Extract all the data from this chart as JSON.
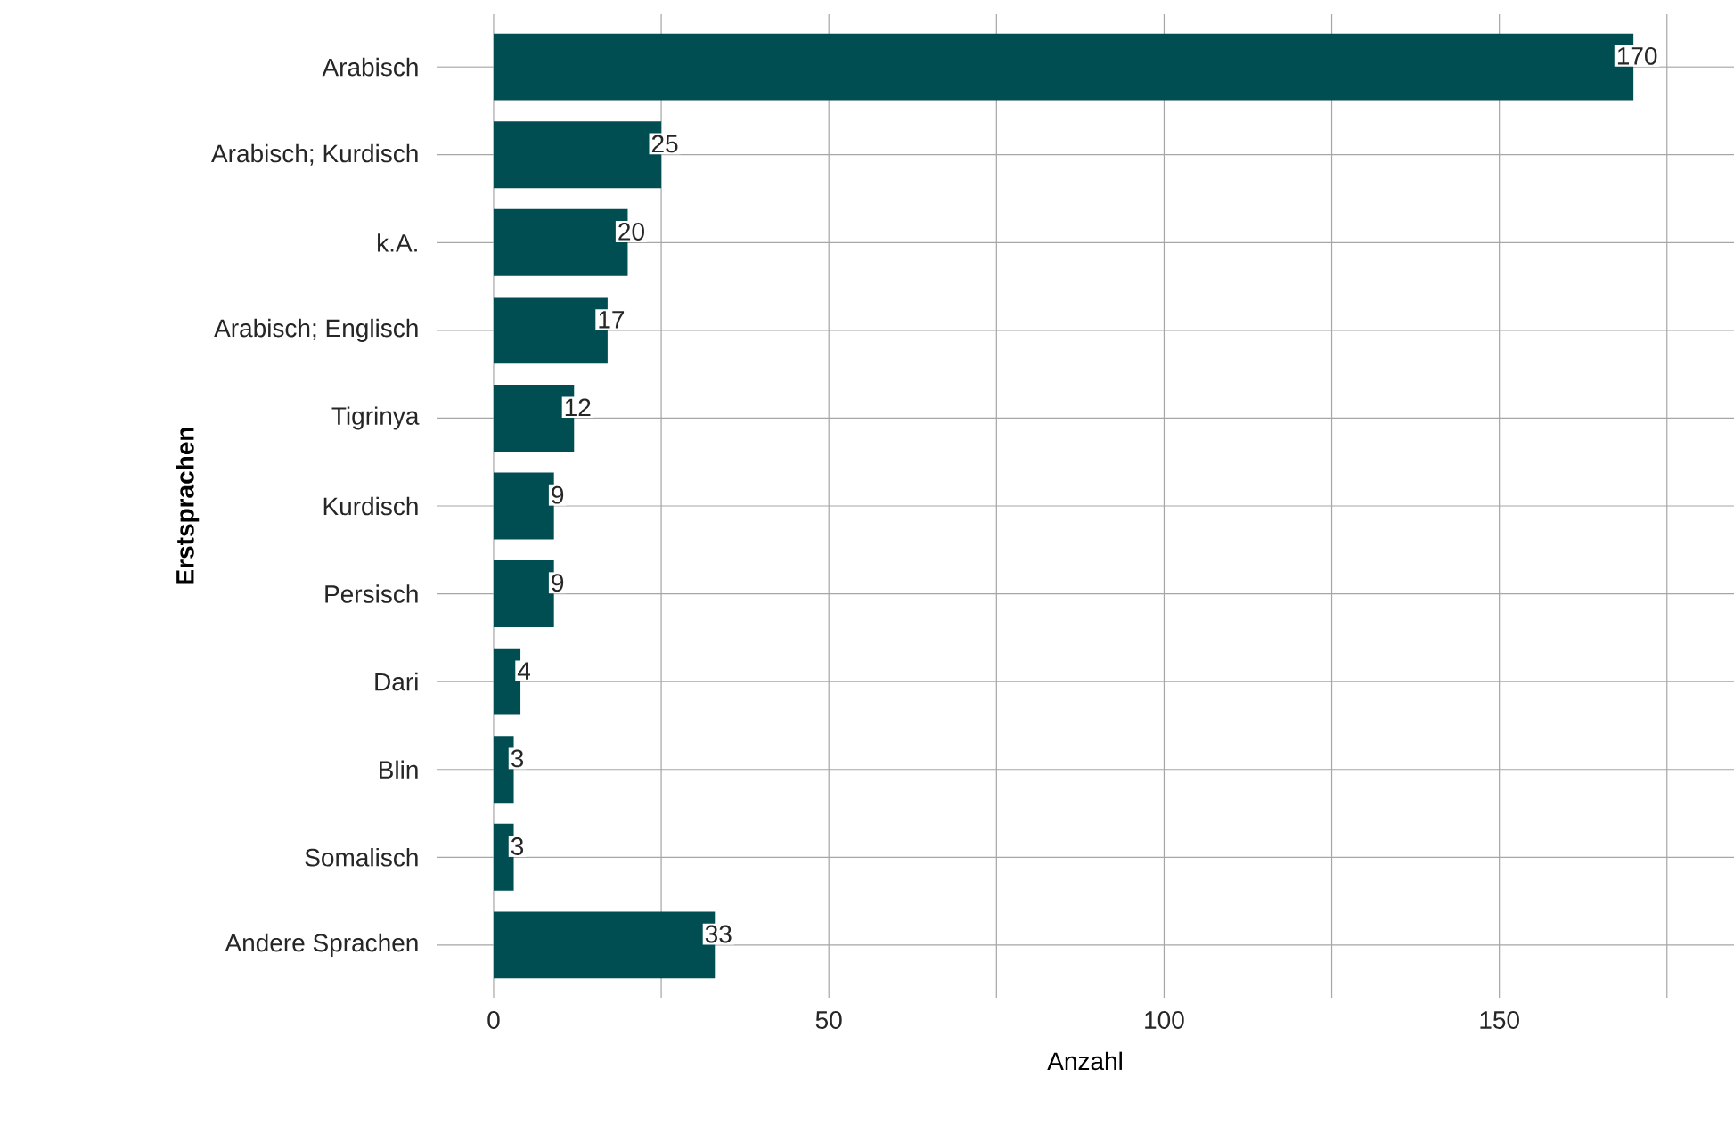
{
  "chart_data": {
    "type": "bar",
    "orientation": "horizontal",
    "xlabel": "Anzahl",
    "ylabel": "Erstsprachen",
    "categories": [
      "Arabisch",
      "Arabisch; Kurdisch",
      "k.A.",
      "Arabisch; Englisch",
      "Tigrinya",
      "Kurdisch",
      "Persisch",
      "Dari",
      "Blin",
      "Somalisch",
      "Andere Sprachen"
    ],
    "values": [
      170,
      25,
      20,
      17,
      12,
      9,
      9,
      4,
      3,
      3,
      33
    ],
    "color": "#004d52",
    "data_labels": true,
    "grid": true,
    "xlim": [
      -8.5,
      185
    ],
    "xticks": [
      0,
      {
        "value": 25,
        "label": null
      },
      50,
      {
        "value": 75,
        "label": null
      },
      100,
      {
        "value": 125,
        "label": null
      },
      150,
      {
        "value": 175,
        "label": null
      }
    ]
  }
}
